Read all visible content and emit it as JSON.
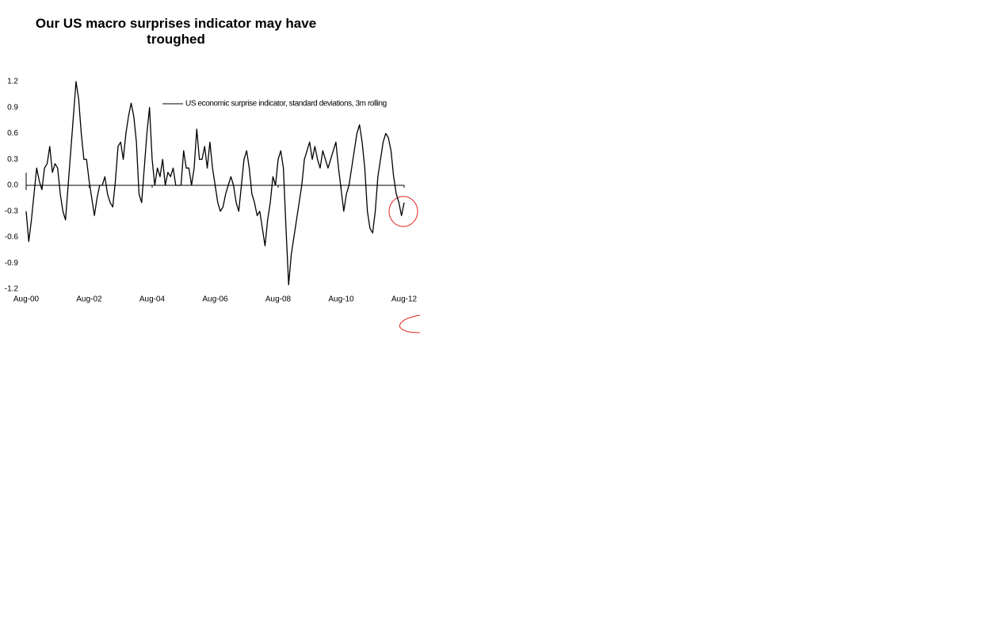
{
  "chart_data": {
    "type": "line",
    "title": "Our US macro surprises indicator may have troughed",
    "categories": [
      "Aug-00",
      null,
      null,
      null,
      null,
      null,
      null,
      null,
      null,
      null,
      null,
      null,
      null,
      null,
      null,
      null,
      null,
      null,
      null,
      null,
      null,
      null,
      null,
      null,
      "Aug-02",
      null,
      null,
      null,
      null,
      null,
      null,
      null,
      null,
      null,
      null,
      null,
      null,
      null,
      null,
      null,
      null,
      null,
      null,
      null,
      null,
      null,
      null,
      null,
      "Aug-04",
      null,
      null,
      null,
      null,
      null,
      null,
      null,
      null,
      null,
      null,
      null,
      null,
      null,
      null,
      null,
      null,
      null,
      null,
      null,
      null,
      null,
      null,
      null,
      "Aug-06",
      null,
      null,
      null,
      null,
      null,
      null,
      null,
      null,
      null,
      null,
      null,
      null,
      null,
      null,
      null,
      null,
      null,
      null,
      null,
      null,
      null,
      null,
      null,
      "Aug-08",
      null,
      null,
      null,
      null,
      null,
      null,
      null,
      null,
      null,
      null,
      null,
      null,
      null,
      null,
      null,
      null,
      null,
      null,
      null,
      null,
      null,
      null,
      null,
      "Aug-10",
      null,
      null,
      null,
      null,
      null,
      null,
      null,
      null,
      null,
      null,
      null,
      null,
      null,
      null,
      null,
      null,
      null,
      null,
      null,
      null,
      null,
      null,
      null,
      "Aug-12"
    ],
    "series": [
      {
        "name": "US economic surprise indicator, standard deviations, 3m rolling",
        "color": "#000000",
        "values": [
          -0.3,
          -0.65,
          -0.4,
          -0.1,
          0.2,
          0.05,
          -0.05,
          0.2,
          0.25,
          0.45,
          0.15,
          0.25,
          0.2,
          -0.1,
          -0.3,
          -0.4,
          0.0,
          0.4,
          0.8,
          1.2,
          1.0,
          0.6,
          0.3,
          0.3,
          0.05,
          -0.15,
          -0.35,
          -0.15,
          0.0,
          0.0,
          0.1,
          -0.1,
          -0.2,
          -0.25,
          0.05,
          0.45,
          0.5,
          0.3,
          0.6,
          0.8,
          0.95,
          0.8,
          0.5,
          -0.1,
          -0.2,
          0.2,
          0.6,
          0.9,
          0.3,
          0.0,
          0.2,
          0.1,
          0.3,
          0.0,
          0.15,
          0.1,
          0.2,
          0.0,
          0.0,
          0.0,
          0.4,
          0.2,
          0.2,
          0.0,
          0.2,
          0.65,
          0.3,
          0.3,
          0.45,
          0.2,
          0.5,
          0.2,
          0.0,
          -0.2,
          -0.3,
          -0.25,
          -0.1,
          0.0,
          0.1,
          0.0,
          -0.2,
          -0.3,
          0.0,
          0.3,
          0.4,
          0.2,
          -0.1,
          -0.2,
          -0.35,
          -0.3,
          -0.5,
          -0.7,
          -0.4,
          -0.2,
          0.1,
          0.0,
          0.3,
          0.4,
          0.2,
          -0.5,
          -1.15,
          -0.8,
          -0.6,
          -0.4,
          -0.2,
          0.0,
          0.3,
          0.4,
          0.5,
          0.3,
          0.45,
          0.3,
          0.2,
          0.4,
          0.3,
          0.2,
          0.3,
          0.4,
          0.5,
          0.2,
          -0.05,
          -0.3,
          -0.1,
          0.0,
          0.2,
          0.4,
          0.6,
          0.7,
          0.5,
          0.2,
          -0.3,
          -0.5,
          -0.55,
          -0.3,
          0.1,
          0.3,
          0.5,
          0.6,
          0.55,
          0.4,
          0.1,
          -0.1,
          -0.2,
          -0.35,
          -0.2
        ]
      }
    ],
    "ylim": [
      -1.2,
      1.2
    ],
    "yticks": [
      -1.2,
      -0.9,
      -0.6,
      -0.3,
      {
        "value": 0,
        "label": "0.0"
      },
      0.3,
      0.6,
      0.9,
      1.2
    ],
    "grid": false
  }
}
